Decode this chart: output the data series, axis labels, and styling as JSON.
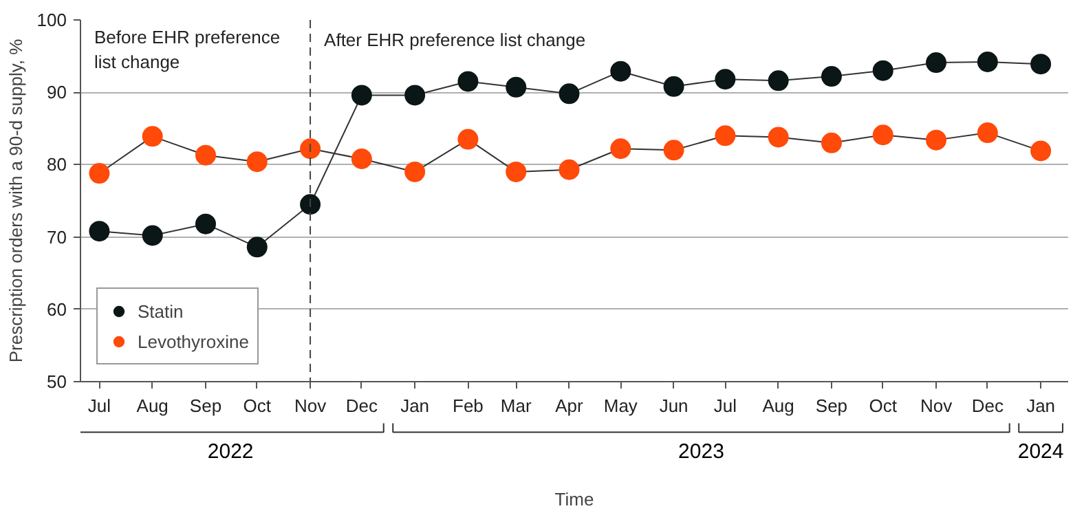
{
  "chart_data": {
    "type": "line",
    "xlabel": "Time",
    "ylabel": "Prescription orders with a 90-d supply, %",
    "x": [
      "2022-07",
      "2022-08",
      "2022-09",
      "2022-10",
      "2022-11",
      "2022-12",
      "2023-01",
      "2023-02",
      "2023-03",
      "2023-04",
      "2023-05",
      "2023-06",
      "2023-07",
      "2023-08",
      "2023-09",
      "2023-10",
      "2023-11",
      "2023-12",
      "2024-01"
    ],
    "xlim": [
      "2022-06-20",
      "2024-01-17"
    ],
    "xticks": [
      {
        "value": "2022-07",
        "label": "Jul"
      },
      {
        "value": "2022-08",
        "label": "Aug"
      },
      {
        "value": "2022-09",
        "label": "Sep"
      },
      {
        "value": "2022-10",
        "label": "Oct"
      },
      {
        "value": "2022-11",
        "label": "Nov"
      },
      {
        "value": "2022-12",
        "label": "Dec"
      },
      {
        "value": "2023-01",
        "label": "Jan"
      },
      {
        "value": "2023-02",
        "label": "Feb"
      },
      {
        "value": "2023-03",
        "label": "Mar"
      },
      {
        "value": "2023-04",
        "label": "Apr"
      },
      {
        "value": "2023-05",
        "label": "May"
      },
      {
        "value": "2023-06",
        "label": "Jun"
      },
      {
        "value": "2023-07",
        "label": "Jul"
      },
      {
        "value": "2023-08",
        "label": "Aug"
      },
      {
        "value": "2023-09",
        "label": "Sep"
      },
      {
        "value": "2023-10",
        "label": "Oct"
      },
      {
        "value": "2023-11",
        "label": "Nov"
      },
      {
        "value": "2023-12",
        "label": "Dec"
      },
      {
        "value": "2024-01",
        "label": "Jan"
      }
    ],
    "ylim": [
      50,
      100
    ],
    "yticks": [
      50,
      60,
      70,
      80,
      90,
      100
    ],
    "series": [
      {
        "name": "Statin",
        "color": "#0b1716",
        "values": [
          70.8,
          70.2,
          71.8,
          68.6,
          74.5,
          89.6,
          89.6,
          91.5,
          90.7,
          89.8,
          92.9,
          90.8,
          91.8,
          91.6,
          92.2,
          93.0,
          94.1,
          94.2,
          93.9
        ]
      },
      {
        "name": "Levothyroxine",
        "color": "#ff4a0a",
        "values": [
          78.8,
          83.9,
          81.3,
          80.4,
          82.2,
          80.8,
          79.0,
          83.5,
          79.0,
          79.3,
          82.2,
          82.0,
          84.0,
          83.8,
          83.0,
          84.1,
          83.4,
          84.4,
          81.9
        ]
      }
    ],
    "ref_lines": [
      {
        "axis": "x",
        "value": "2022-11",
        "label": "After EHR preference list change",
        "color": "#444444",
        "line_style": "dashed"
      }
    ],
    "annotations": [
      "Before EHR preference\nlist change",
      "2022",
      "2023",
      "2024"
    ],
    "grid": "y",
    "legend": "bottom left",
    "marker": "circle",
    "line_style": "solid"
  }
}
